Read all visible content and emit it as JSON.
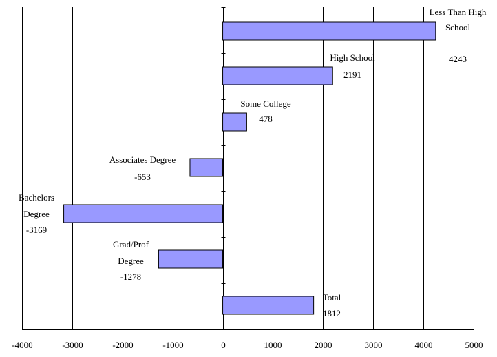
{
  "chart_data": {
    "type": "bar",
    "orientation": "horizontal",
    "categories": [
      "Less Than High School",
      "High School",
      "Some College",
      "Associates Degree",
      "Bachelors Degree",
      "Grad/Prof Degree",
      "Total"
    ],
    "label_lines": [
      [
        "Less Than High",
        "School"
      ],
      [
        "High School"
      ],
      [
        "Some College"
      ],
      [
        "Associates Degree"
      ],
      [
        "Bachelors",
        "Degree"
      ],
      [
        "Grad/Prof",
        "Degree"
      ],
      [
        "Total"
      ]
    ],
    "values": [
      4243,
      2191,
      478,
      -653,
      -3169,
      -1278,
      1812
    ],
    "value_labels": [
      "4243",
      "2191",
      "478",
      "-653",
      "-3169",
      "-1278",
      "1812"
    ],
    "xlim": [
      -4000,
      5000
    ],
    "xticks": [
      -4000,
      -3000,
      -2000,
      -1000,
      0,
      1000,
      2000,
      3000,
      4000,
      5000
    ],
    "xtick_labels": [
      "-4000",
      "-3000",
      "-2000",
      "-1000",
      "0",
      "1000",
      "2000",
      "3000",
      "4000",
      "5000"
    ],
    "grid": true,
    "legend": "none",
    "colors": {
      "bar_fill": "#9999ff",
      "bar_stroke": "#000000",
      "grid": "#000000"
    }
  }
}
